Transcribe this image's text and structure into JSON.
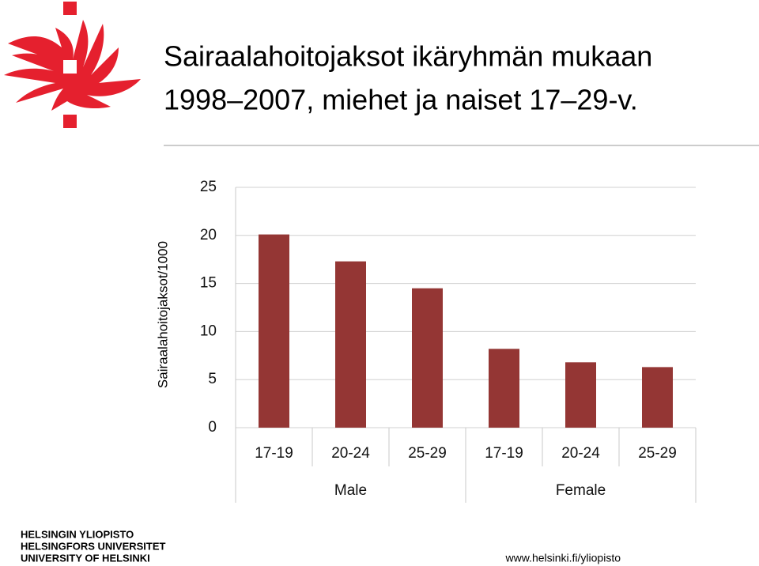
{
  "chart_data": {
    "type": "bar",
    "title": "Sairaalahoitojaksot ikäryhmän mukaan",
    "subtitle": "1998–2007, miehet ja naiset 17–29-v.",
    "y_label": "Sairaalahoitojaksot/1000",
    "categories": [
      "17-19",
      "20-24",
      "25-29",
      "17-19",
      "20-24",
      "25-29"
    ],
    "groups": [
      "Male",
      "Female"
    ],
    "values": [
      20.1,
      17.3,
      14.5,
      8.2,
      6.8,
      6.3
    ],
    "color": "#943634",
    "ylim": [
      0,
      25
    ],
    "yticks": [
      0,
      5,
      10,
      15,
      20,
      25
    ],
    "grid": true
  },
  "footer": {
    "logo_lines": [
      "HELSINGIN YLIOPISTO",
      "HELSINGFORS UNIVERSITET",
      "UNIVERSITY OF HELSINKI"
    ],
    "url": "www.helsinki.fi/yliopisto"
  }
}
